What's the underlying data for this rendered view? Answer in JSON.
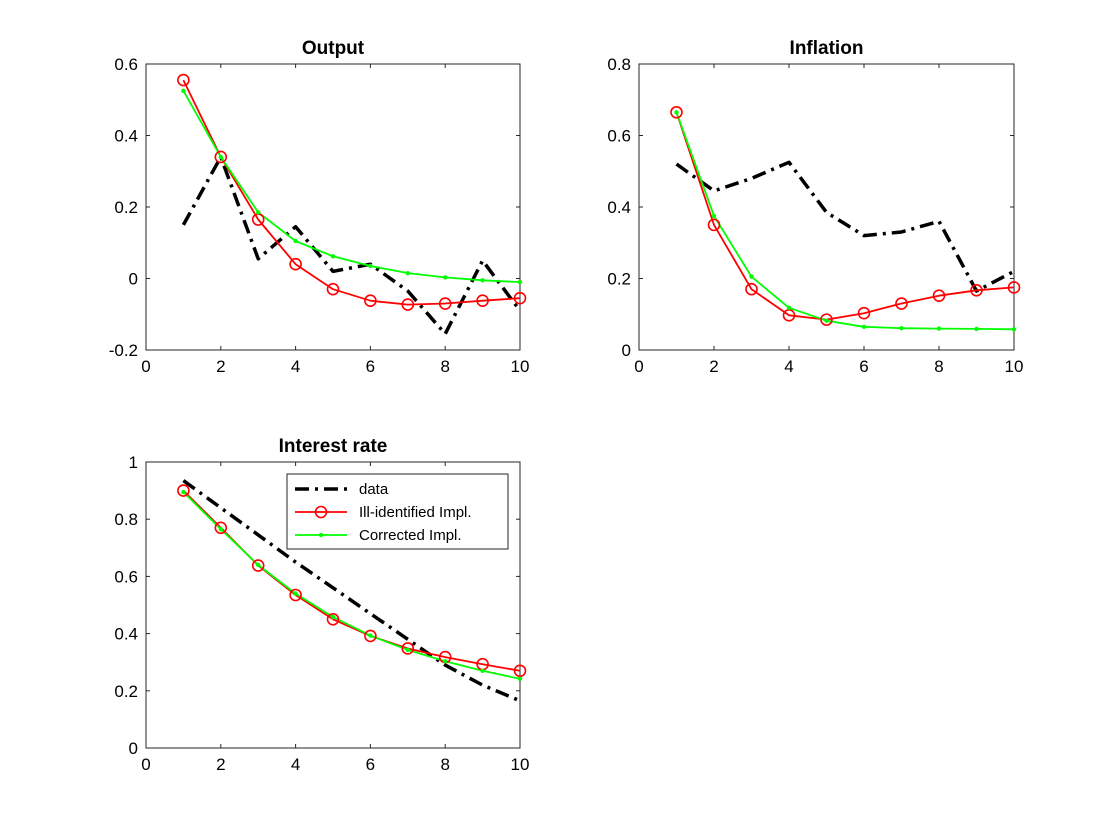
{
  "chart_data": [
    {
      "type": "line",
      "title": "Output",
      "xlabel": "",
      "ylabel": "",
      "xlim": [
        0,
        10
      ],
      "ylim": [
        -0.2,
        0.6
      ],
      "xticks": [
        0,
        2,
        4,
        6,
        8,
        10
      ],
      "yticks": [
        -0.2,
        0,
        0.2,
        0.4,
        0.6
      ],
      "x": [
        1,
        2,
        3,
        4,
        5,
        6,
        7,
        8,
        9,
        10
      ],
      "series": [
        {
          "name": "data",
          "color": "#000000",
          "style": "dash-dot",
          "marker": "none",
          "values": [
            0.15,
            0.34,
            0.055,
            0.145,
            0.02,
            0.04,
            -0.035,
            -0.155,
            0.05,
            -0.09
          ]
        },
        {
          "name": "Ill-identified Impl.",
          "color": "#ff0000",
          "style": "solid",
          "marker": "circle",
          "values": [
            0.555,
            0.34,
            0.165,
            0.04,
            -0.03,
            -0.062,
            -0.073,
            -0.07,
            -0.062,
            -0.055
          ]
        },
        {
          "name": "Corrected Impl.",
          "color": "#00ff00",
          "style": "solid",
          "marker": "dot",
          "values": [
            0.525,
            0.34,
            0.185,
            0.105,
            0.062,
            0.035,
            0.015,
            0.003,
            -0.005,
            -0.01
          ]
        }
      ],
      "grid": false,
      "legend": "none"
    },
    {
      "type": "line",
      "title": "Inflation",
      "xlabel": "",
      "ylabel": "",
      "xlim": [
        0,
        10
      ],
      "ylim": [
        0,
        0.8
      ],
      "xticks": [
        0,
        2,
        4,
        6,
        8,
        10
      ],
      "yticks": [
        0,
        0.2,
        0.4,
        0.6,
        0.8
      ],
      "x": [
        1,
        2,
        3,
        4,
        5,
        6,
        7,
        8,
        9,
        10
      ],
      "series": [
        {
          "name": "data",
          "color": "#000000",
          "style": "dash-dot",
          "marker": "none",
          "values": [
            0.52,
            0.445,
            0.48,
            0.525,
            0.385,
            0.32,
            0.33,
            0.36,
            0.165,
            0.22
          ]
        },
        {
          "name": "Ill-identified Impl.",
          "color": "#ff0000",
          "style": "solid",
          "marker": "circle",
          "values": [
            0.665,
            0.35,
            0.17,
            0.097,
            0.085,
            0.103,
            0.13,
            0.152,
            0.167,
            0.175
          ]
        },
        {
          "name": "Corrected Impl.",
          "color": "#00ff00",
          "style": "solid",
          "marker": "dot",
          "values": [
            0.665,
            0.375,
            0.205,
            0.118,
            0.082,
            0.065,
            0.061,
            0.06,
            0.059,
            0.058
          ]
        }
      ],
      "grid": false,
      "legend": "none"
    },
    {
      "type": "line",
      "title": "Interest rate",
      "xlabel": "",
      "ylabel": "",
      "xlim": [
        0,
        10
      ],
      "ylim": [
        0,
        1
      ],
      "xticks": [
        0,
        2,
        4,
        6,
        8,
        10
      ],
      "yticks": [
        0,
        0.2,
        0.4,
        0.6,
        0.8,
        1
      ],
      "x": [
        1,
        2,
        3,
        4,
        5,
        6,
        7,
        8,
        9,
        10
      ],
      "series": [
        {
          "name": "data",
          "color": "#000000",
          "style": "dash-dot",
          "marker": "none",
          "values": [
            0.935,
            0.84,
            0.745,
            0.65,
            0.56,
            0.47,
            0.38,
            0.29,
            0.22,
            0.165
          ]
        },
        {
          "name": "Ill-identified Impl.",
          "color": "#ff0000",
          "style": "solid",
          "marker": "circle",
          "values": [
            0.9,
            0.77,
            0.638,
            0.535,
            0.45,
            0.392,
            0.348,
            0.318,
            0.293,
            0.27
          ]
        },
        {
          "name": "Corrected Impl.",
          "color": "#00ff00",
          "style": "solid",
          "marker": "dot",
          "values": [
            0.895,
            0.765,
            0.64,
            0.54,
            0.458,
            0.393,
            0.343,
            0.303,
            0.27,
            0.242
          ]
        }
      ],
      "grid": false,
      "legend": "top-right"
    }
  ]
}
